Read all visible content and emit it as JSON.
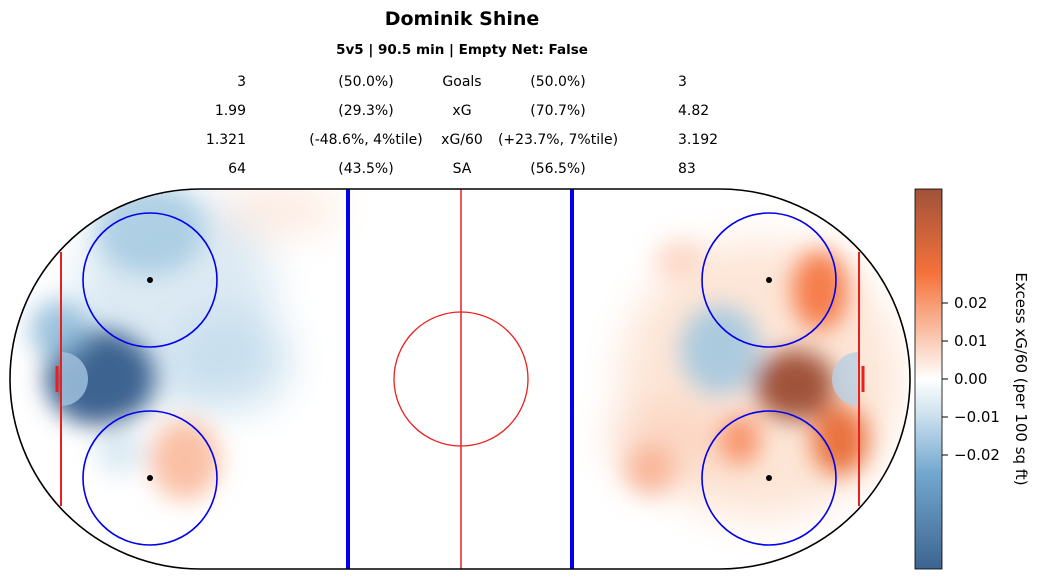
{
  "chart_data": {
    "type": "heatmap",
    "title": "Dominik Shine",
    "subtitle": "5v5 | 90.5 min | Empty Net: False",
    "stats": [
      {
        "label": "Goals",
        "left_value": "3",
        "left_pct": "(50.0%)",
        "right_pct": "(50.0%)",
        "right_value": "3"
      },
      {
        "label": "xG",
        "left_value": "1.99",
        "left_pct": "(29.3%)",
        "right_pct": "(70.7%)",
        "right_value": "4.82"
      },
      {
        "label": "xG/60",
        "left_value": "1.321",
        "left_pct": "(-48.6%, 4%tile)",
        "right_pct": "(+23.7%, 7%tile)",
        "right_value": "3.192"
      },
      {
        "label": "SA",
        "left_value": "64",
        "left_pct": "(43.5%)",
        "right_pct": "(56.5%)",
        "right_value": "83"
      }
    ],
    "colorbar": {
      "label": "Excess xG/60 (per 100 sq ft)",
      "ticks": [
        "0.02",
        "0.01",
        "0.00",
        "−0.01",
        "−0.02"
      ],
      "tick_values": [
        0.02,
        0.01,
        0.0,
        -0.01,
        -0.02
      ],
      "range": [
        -0.05,
        0.05
      ],
      "colors": {
        "low": "#3d6491",
        "mid": "#ffffff",
        "high": "#a0523a"
      }
    },
    "rink": {
      "board_color": "#000000",
      "red_line_color": "#e8201e",
      "blue_line_color": "#0000ee"
    },
    "hotspots": [
      {
        "zone": "left-slot",
        "value": -0.05
      },
      {
        "zone": "left-top-circle",
        "value": -0.02
      },
      {
        "zone": "left-bottom-circle",
        "value": 0.02
      },
      {
        "zone": "right-slot",
        "value": 0.05
      },
      {
        "zone": "right-top-circle",
        "value": 0.03
      },
      {
        "zone": "right-bottom-circle",
        "value": 0.035
      },
      {
        "zone": "right-inner-left",
        "value": -0.02
      }
    ]
  }
}
